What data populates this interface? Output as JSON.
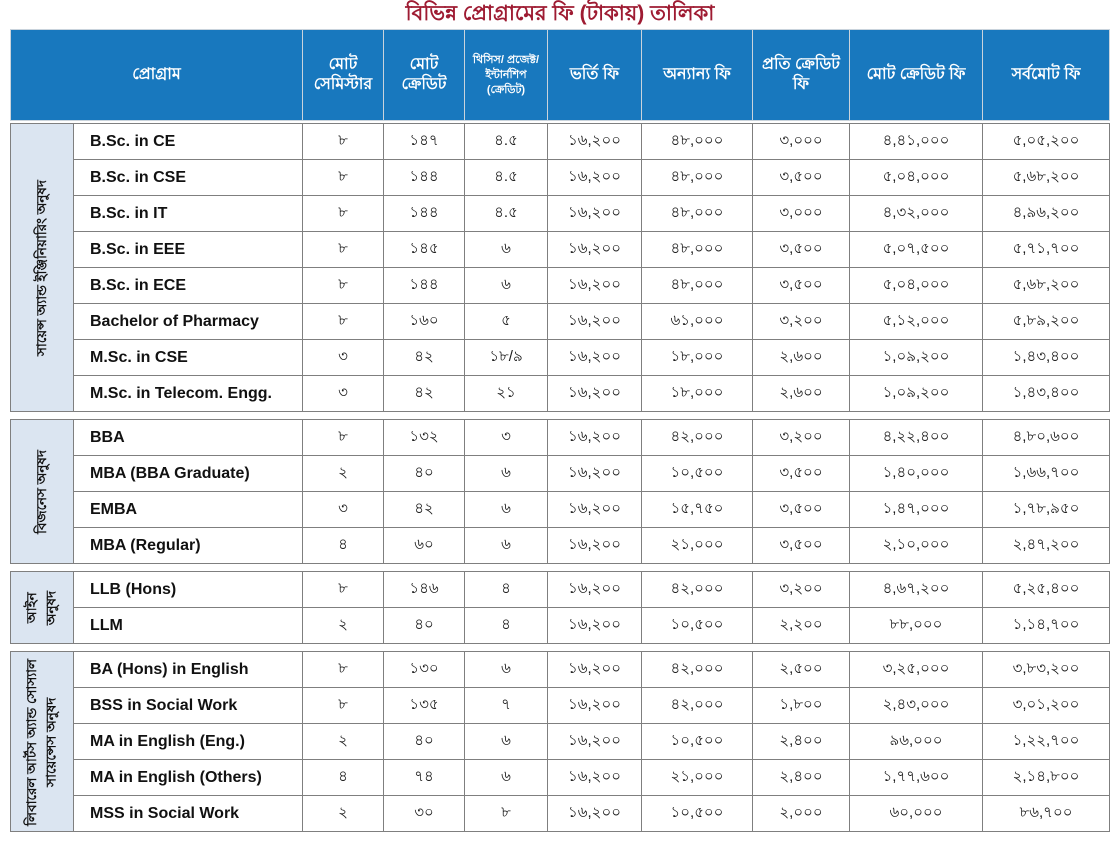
{
  "title": "বিভিন্ন প্রোগ্রামের ফি (টাকায়) তালিকা",
  "colors": {
    "title_red": "#9e1b32",
    "header_blue": "#1878be",
    "faculty_sidebar_blue": "#dbe5f1",
    "grid_border_gray": "#7f7f7f"
  },
  "table": {
    "headers": [
      "প্রোগ্রাম",
      "মোট সেমিস্টার",
      "মোট ক্রেডিট",
      "থিসিস/ প্রজেক্ট/ ইন্টার্নশিপ (ক্রেডিট)",
      "ভর্তি ফি",
      "অন্যান্য ফি",
      "প্রতি ক্রেডিট ফি",
      "মোট ক্রেডিট ফি",
      "সর্বমোট ফি"
    ],
    "groups": [
      {
        "faculty": "সায়েন্স অ্যান্ড ইঞ্জিনিয়ারিং অনুষদ",
        "rows": [
          {
            "program": "B.Sc. in CE",
            "semesters": "৮",
            "credits": "১৪৭",
            "thesis": "৪.৫",
            "admission": "১৬,২০০",
            "other": "৪৮,০০০",
            "per_credit": "৩,০০০",
            "total_credit": "৪,৪১,০০০",
            "grand_total": "৫,০৫,২০০"
          },
          {
            "program": "B.Sc. in CSE",
            "semesters": "৮",
            "credits": "১৪৪",
            "thesis": "৪.৫",
            "admission": "১৬,২০০",
            "other": "৪৮,০০০",
            "per_credit": "৩,৫০০",
            "total_credit": "৫,০৪,০০০",
            "grand_total": "৫,৬৮,২০০"
          },
          {
            "program": "B.Sc. in IT",
            "semesters": "৮",
            "credits": "১৪৪",
            "thesis": "৪.৫",
            "admission": "১৬,২০০",
            "other": "৪৮,০০০",
            "per_credit": "৩,০০০",
            "total_credit": "৪,৩২,০০০",
            "grand_total": "৪,৯৬,২০০"
          },
          {
            "program": "B.Sc. in EEE",
            "semesters": "৮",
            "credits": "১৪৫",
            "thesis": "৬",
            "admission": "১৬,২০০",
            "other": "৪৮,০০০",
            "per_credit": "৩,৫০০",
            "total_credit": "৫,০৭,৫০০",
            "grand_total": "৫,৭১,৭০০"
          },
          {
            "program": "B.Sc. in ECE",
            "semesters": "৮",
            "credits": "১৪৪",
            "thesis": "৬",
            "admission": "১৬,২০০",
            "other": "৪৮,০০০",
            "per_credit": "৩,৫০০",
            "total_credit": "৫,০৪,০০০",
            "grand_total": "৫,৬৮,২০০"
          },
          {
            "program": "Bachelor of Pharmacy",
            "semesters": "৮",
            "credits": "১৬০",
            "thesis": "৫",
            "admission": "১৬,২০০",
            "other": "৬১,০০০",
            "per_credit": "৩,২০০",
            "total_credit": "৫,১২,০০০",
            "grand_total": "৫,৮৯,২০০"
          },
          {
            "program": "M.Sc. in CSE",
            "semesters": "৩",
            "credits": "৪২",
            "thesis": "১৮/৯",
            "admission": "১৬,২০০",
            "other": "১৮,০০০",
            "per_credit": "২,৬০০",
            "total_credit": "১,০৯,২০০",
            "grand_total": "১,৪৩,৪০০"
          },
          {
            "program": "M.Sc. in Telecom. Engg.",
            "semesters": "৩",
            "credits": "৪২",
            "thesis": "২১",
            "admission": "১৬,২০০",
            "other": "১৮,০০০",
            "per_credit": "২,৬০০",
            "total_credit": "১,০৯,২০০",
            "grand_total": "১,৪৩,৪০০"
          }
        ]
      },
      {
        "faculty": "বিজনেস অনুষদ",
        "rows": [
          {
            "program": "BBA",
            "semesters": "৮",
            "credits": "১৩২",
            "thesis": "৩",
            "admission": "১৬,২০০",
            "other": "৪২,০০০",
            "per_credit": "৩,২০০",
            "total_credit": "৪,২২,৪০০",
            "grand_total": "৪,৮০,৬০০"
          },
          {
            "program": "MBA (BBA Graduate)",
            "semesters": "২",
            "credits": "৪০",
            "thesis": "৬",
            "admission": "১৬,২০০",
            "other": "১০,৫০০",
            "per_credit": "৩,৫০০",
            "total_credit": "১,৪০,০০০",
            "grand_total": "১,৬৬,৭০০"
          },
          {
            "program": "EMBA",
            "semesters": "৩",
            "credits": "৪২",
            "thesis": "৬",
            "admission": "১৬,২০০",
            "other": "১৫,৭৫০",
            "per_credit": "৩,৫০০",
            "total_credit": "১,৪৭,০০০",
            "grand_total": "১,৭৮,৯৫০"
          },
          {
            "program": "MBA (Regular)",
            "semesters": "৪",
            "credits": "৬০",
            "thesis": "৬",
            "admission": "১৬,২০০",
            "other": "২১,০০০",
            "per_credit": "৩,৫০০",
            "total_credit": "২,১০,০০০",
            "grand_total": "২,৪৭,২০০"
          }
        ]
      },
      {
        "faculty": "আইন অনুষদ",
        "rows": [
          {
            "program": "LLB (Hons)",
            "semesters": "৮",
            "credits": "১৪৬",
            "thesis": "৪",
            "admission": "১৬,২০০",
            "other": "৪২,০০০",
            "per_credit": "৩,২০০",
            "total_credit": "৪,৬৭,২০০",
            "grand_total": "৫,২৫,৪০০"
          },
          {
            "program": "LLM",
            "semesters": "২",
            "credits": "৪০",
            "thesis": "৪",
            "admission": "১৬,২০০",
            "other": "১০,৫০০",
            "per_credit": "২,২০০",
            "total_credit": "৮৮,০০০",
            "grand_total": "১,১৪,৭০০"
          }
        ]
      },
      {
        "faculty": "লিবারেল আর্টস অ্যান্ড সোস্যাল সায়েন্সেস অনুষদ",
        "rows": [
          {
            "program": "BA (Hons) in English",
            "semesters": "৮",
            "credits": "১৩০",
            "thesis": "৬",
            "admission": "১৬,২০০",
            "other": "৪২,০০০",
            "per_credit": "২,৫০০",
            "total_credit": "৩,২৫,০০০",
            "grand_total": "৩,৮৩,২০০"
          },
          {
            "program": "BSS in Social Work",
            "semesters": "৮",
            "credits": "১৩৫",
            "thesis": "৭",
            "admission": "১৬,২০০",
            "other": "৪২,০০০",
            "per_credit": "১,৮০০",
            "total_credit": "২,৪৩,০০০",
            "grand_total": "৩,০১,২০০"
          },
          {
            "program": "MA in English (Eng.)",
            "semesters": "২",
            "credits": "৪০",
            "thesis": "৬",
            "admission": "১৬,২০০",
            "other": "১০,৫০০",
            "per_credit": "২,৪০০",
            "total_credit": "৯৬,০০০",
            "grand_total": "১,২২,৭০০"
          },
          {
            "program": "MA in English (Others)",
            "semesters": "৪",
            "credits": "৭৪",
            "thesis": "৬",
            "admission": "১৬,২০০",
            "other": "২১,০০০",
            "per_credit": "২,৪০০",
            "total_credit": "১,৭৭,৬০০",
            "grand_total": "২,১৪,৮০০"
          },
          {
            "program": "MSS in Social Work",
            "semesters": "২",
            "credits": "৩০",
            "thesis": "৮",
            "admission": "১৬,২০০",
            "other": "১০,৫০০",
            "per_credit": "২,০০০",
            "total_credit": "৬০,০০০",
            "grand_total": "৮৬,৭০০"
          }
        ]
      }
    ]
  }
}
